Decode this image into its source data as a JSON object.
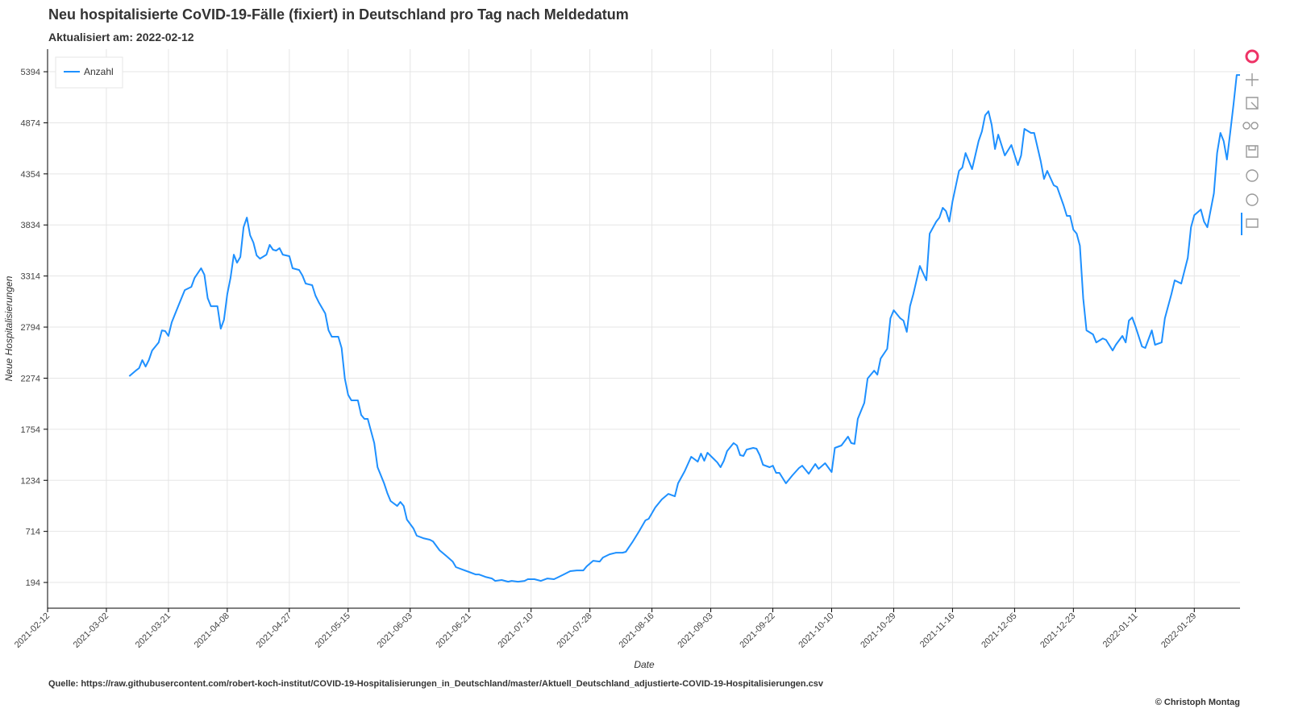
{
  "chart_data": {
    "type": "line",
    "title": "Neu hospitalisierte CoVID-19-Fälle (fixiert) in Deutschland pro Tag nach Meldedatum",
    "subtitle": "Aktualisiert am: 2022-02-12",
    "x_label": "Date",
    "y_label": "Neue Hospitalisierungen",
    "source": "Quelle: https://raw.githubusercontent.com/robert-koch-institut/COVID-19-Hospitalisierungen_in_Deutschland/master/Aktuell_Deutschland_adjustierte-COVID-19-Hospitalisierungen.csv",
    "copyright": "© Christoph Montag",
    "legend_position": "top-left",
    "grid": true,
    "xlim": [
      "2021-02-12",
      "2022-02-12"
    ],
    "xticks": [
      "2021-02-12",
      "2021-03-02",
      "2021-03-21",
      "2021-04-08",
      "2021-04-27",
      "2021-05-15",
      "2021-06-03",
      "2021-06-21",
      "2021-07-10",
      "2021-07-28",
      "2021-08-16",
      "2021-09-03",
      "2021-09-22",
      "2021-10-10",
      "2021-10-29",
      "2021-11-16",
      "2021-12-05",
      "2021-12-23",
      "2022-01-11",
      "2022-01-29"
    ],
    "ylim": [
      -68,
      5624
    ],
    "yticks": [
      194,
      714,
      1234,
      1754,
      2274,
      2794,
      3314,
      3834,
      4354,
      4874,
      5394
    ],
    "x": [
      "2021-03-09",
      "2021-03-11",
      "2021-03-12",
      "2021-03-13",
      "2021-03-14",
      "2021-03-15",
      "2021-03-16",
      "2021-03-18",
      "2021-03-19",
      "2021-03-20",
      "2021-03-21",
      "2021-03-22",
      "2021-03-23",
      "2021-03-25",
      "2021-03-26",
      "2021-03-28",
      "2021-03-29",
      "2021-03-31",
      "2021-04-01",
      "2021-04-02",
      "2021-04-03",
      "2021-04-05",
      "2021-04-06",
      "2021-04-07",
      "2021-04-08",
      "2021-04-09",
      "2021-04-10",
      "2021-04-11",
      "2021-04-12",
      "2021-04-13",
      "2021-04-14",
      "2021-04-15",
      "2021-04-16",
      "2021-04-17",
      "2021-04-18",
      "2021-04-20",
      "2021-04-21",
      "2021-04-22",
      "2021-04-23",
      "2021-04-24",
      "2021-04-25",
      "2021-04-27",
      "2021-04-28",
      "2021-04-30",
      "2021-05-01",
      "2021-05-02",
      "2021-05-04",
      "2021-05-05",
      "2021-05-06",
      "2021-05-08",
      "2021-05-09",
      "2021-05-10",
      "2021-05-12",
      "2021-05-13",
      "2021-05-14",
      "2021-05-15",
      "2021-05-16",
      "2021-05-18",
      "2021-05-19",
      "2021-05-20",
      "2021-05-21",
      "2021-05-23",
      "2021-05-24",
      "2021-05-26",
      "2021-05-27",
      "2021-05-28",
      "2021-05-30",
      "2021-05-31",
      "2021-06-01",
      "2021-06-02",
      "2021-06-04",
      "2021-06-05",
      "2021-06-07",
      "2021-06-09",
      "2021-06-10",
      "2021-06-12",
      "2021-06-14",
      "2021-06-16",
      "2021-06-17",
      "2021-06-19",
      "2021-06-21",
      "2021-06-23",
      "2021-06-24",
      "2021-06-26",
      "2021-06-28",
      "2021-06-29",
      "2021-07-01",
      "2021-07-03",
      "2021-07-04",
      "2021-07-06",
      "2021-07-08",
      "2021-07-09",
      "2021-07-11",
      "2021-07-13",
      "2021-07-15",
      "2021-07-17",
      "2021-07-18",
      "2021-07-20",
      "2021-07-22",
      "2021-07-24",
      "2021-07-26",
      "2021-07-27",
      "2021-07-29",
      "2021-07-31",
      "2021-08-01",
      "2021-08-03",
      "2021-08-05",
      "2021-08-07",
      "2021-08-08",
      "2021-08-10",
      "2021-08-12",
      "2021-08-14",
      "2021-08-15",
      "2021-08-17",
      "2021-08-19",
      "2021-08-21",
      "2021-08-23",
      "2021-08-24",
      "2021-08-26",
      "2021-08-28",
      "2021-08-30",
      "2021-08-31",
      "2021-09-01",
      "2021-09-02",
      "2021-09-04",
      "2021-09-05",
      "2021-09-06",
      "2021-09-07",
      "2021-09-08",
      "2021-09-10",
      "2021-09-11",
      "2021-09-12",
      "2021-09-13",
      "2021-09-14",
      "2021-09-16",
      "2021-09-17",
      "2021-09-18",
      "2021-09-19",
      "2021-09-21",
      "2021-09-22",
      "2021-09-23",
      "2021-09-24",
      "2021-09-26",
      "2021-09-28",
      "2021-09-30",
      "2021-10-01",
      "2021-10-03",
      "2021-10-05",
      "2021-10-06",
      "2021-10-08",
      "2021-10-10",
      "2021-10-11",
      "2021-10-13",
      "2021-10-15",
      "2021-10-16",
      "2021-10-17",
      "2021-10-18",
      "2021-10-20",
      "2021-10-21",
      "2021-10-23",
      "2021-10-24",
      "2021-10-25",
      "2021-10-27",
      "2021-10-28",
      "2021-10-29",
      "2021-10-31",
      "2021-11-01",
      "2021-11-02",
      "2021-11-03",
      "2021-11-04",
      "2021-11-06",
      "2021-11-08",
      "2021-11-09",
      "2021-11-11",
      "2021-11-12",
      "2021-11-13",
      "2021-11-14",
      "2021-11-15",
      "2021-11-16",
      "2021-11-18",
      "2021-11-19",
      "2021-11-20",
      "2021-11-21",
      "2021-11-22",
      "2021-11-24",
      "2021-11-25",
      "2021-11-26",
      "2021-11-27",
      "2021-11-28",
      "2021-11-29",
      "2021-11-30",
      "2021-12-02",
      "2021-12-04",
      "2021-12-06",
      "2021-12-07",
      "2021-12-08",
      "2021-12-10",
      "2021-12-11",
      "2021-12-13",
      "2021-12-14",
      "2021-12-15",
      "2021-12-17",
      "2021-12-18",
      "2021-12-20",
      "2021-12-21",
      "2021-12-22",
      "2021-12-23",
      "2021-12-24",
      "2021-12-25",
      "2021-12-26",
      "2021-12-27",
      "2021-12-29",
      "2021-12-30",
      "2022-01-01",
      "2022-01-02",
      "2022-01-04",
      "2022-01-05",
      "2022-01-07",
      "2022-01-08",
      "2022-01-09",
      "2022-01-10",
      "2022-01-11",
      "2022-01-13",
      "2022-01-14",
      "2022-01-16",
      "2022-01-17",
      "2022-01-19",
      "2022-01-20",
      "2022-01-22",
      "2022-01-23",
      "2022-01-25",
      "2022-01-27",
      "2022-01-28",
      "2022-01-29",
      "2022-01-31",
      "2022-02-01",
      "2022-02-02",
      "2022-02-04",
      "2022-02-05",
      "2022-02-06",
      "2022-02-07",
      "2022-02-08",
      "2022-02-09",
      "2022-02-10",
      "2022-02-11",
      "2022-02-12"
    ],
    "series": [
      {
        "name": "Anzahl",
        "color": "#1e90ff",
        "values": [
          2294,
          2351,
          2376,
          2458,
          2392,
          2458,
          2556,
          2638,
          2761,
          2753,
          2704,
          2843,
          2925,
          3089,
          3171,
          3204,
          3294,
          3393,
          3327,
          3089,
          3007,
          3007,
          2778,
          2868,
          3130,
          3294,
          3532,
          3450,
          3508,
          3811,
          3909,
          3729,
          3655,
          3524,
          3491,
          3532,
          3631,
          3582,
          3573,
          3598,
          3532,
          3516,
          3393,
          3376,
          3319,
          3237,
          3221,
          3114,
          3048,
          2933,
          2761,
          2696,
          2696,
          2581,
          2270,
          2105,
          2048,
          2048,
          1900,
          1859,
          1859,
          1613,
          1367,
          1203,
          1104,
          1023,
          973,
          1014,
          973,
          834,
          744,
          670,
          645,
          629,
          612,
          522,
          465,
          407,
          350,
          325,
          301,
          276,
          276,
          251,
          235,
          210,
          219,
          202,
          210,
          202,
          210,
          227,
          227,
          210,
          235,
          227,
          243,
          276,
          309,
          317,
          317,
          358,
          415,
          407,
          448,
          481,
          497,
          497,
          506,
          604,
          711,
          826,
          842,
          957,
          1039,
          1096,
          1071,
          1203,
          1326,
          1474,
          1424,
          1506,
          1433,
          1515,
          1449,
          1416,
          1367,
          1433,
          1531,
          1613,
          1589,
          1490,
          1482,
          1547,
          1564,
          1556,
          1490,
          1392,
          1367,
          1383,
          1310,
          1310,
          1203,
          1285,
          1359,
          1383,
          1301,
          1400,
          1351,
          1408,
          1318,
          1564,
          1589,
          1679,
          1613,
          1605,
          1859,
          2023,
          2270,
          2351,
          2310,
          2474,
          2573,
          2884,
          2966,
          2884,
          2860,
          2745,
          3007,
          3130,
          3417,
          3270,
          3746,
          3868,
          3909,
          4008,
          3975,
          3868,
          4073,
          4385,
          4418,
          4566,
          4484,
          4402,
          4689,
          4787,
          4951,
          4992,
          4853,
          4607,
          4754,
          4541,
          4648,
          4443,
          4541,
          4812,
          4771,
          4771,
          4484,
          4303,
          4385,
          4238,
          4221,
          4033,
          3926,
          3926,
          3786,
          3746,
          3623,
          3089,
          2761,
          2720,
          2638,
          2679,
          2663,
          2556,
          2614,
          2704,
          2638,
          2860,
          2892,
          2802,
          2597,
          2581,
          2761,
          2614,
          2638,
          2884,
          3130,
          3270,
          3237,
          3499,
          3811,
          3934,
          3991,
          3868,
          3811,
          4156,
          4566,
          4771,
          4689,
          4500,
          4771,
          5058,
          5361,
          5361
        ]
      }
    ]
  }
}
